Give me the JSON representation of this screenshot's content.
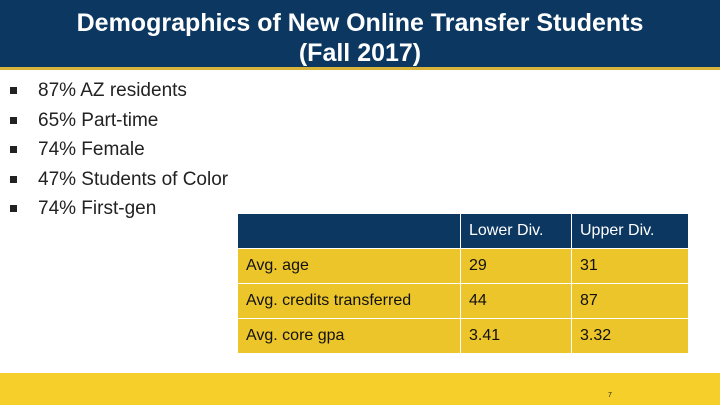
{
  "header": {
    "title_line1": "Demographics of New Online Transfer Students",
    "title_line2": "(Fall 2017)"
  },
  "bullets": [
    "87% AZ residents",
    "65% Part-time",
    "74% Female",
    "47% Students of Color",
    "74% First-gen"
  ],
  "table": {
    "columns": [
      "",
      "Lower Div.",
      "Upper Div."
    ],
    "rows": [
      [
        "Avg. age",
        "29",
        "31"
      ],
      [
        "Avg. credits transferred",
        "44",
        "87"
      ],
      [
        "Avg. core gpa",
        "3.41",
        "3.32"
      ]
    ]
  },
  "footer": {
    "page_number": "7"
  },
  "colors": {
    "navy": "#0b3761",
    "gold": "#ebc529",
    "footer_yellow": "#f6cf2b"
  }
}
